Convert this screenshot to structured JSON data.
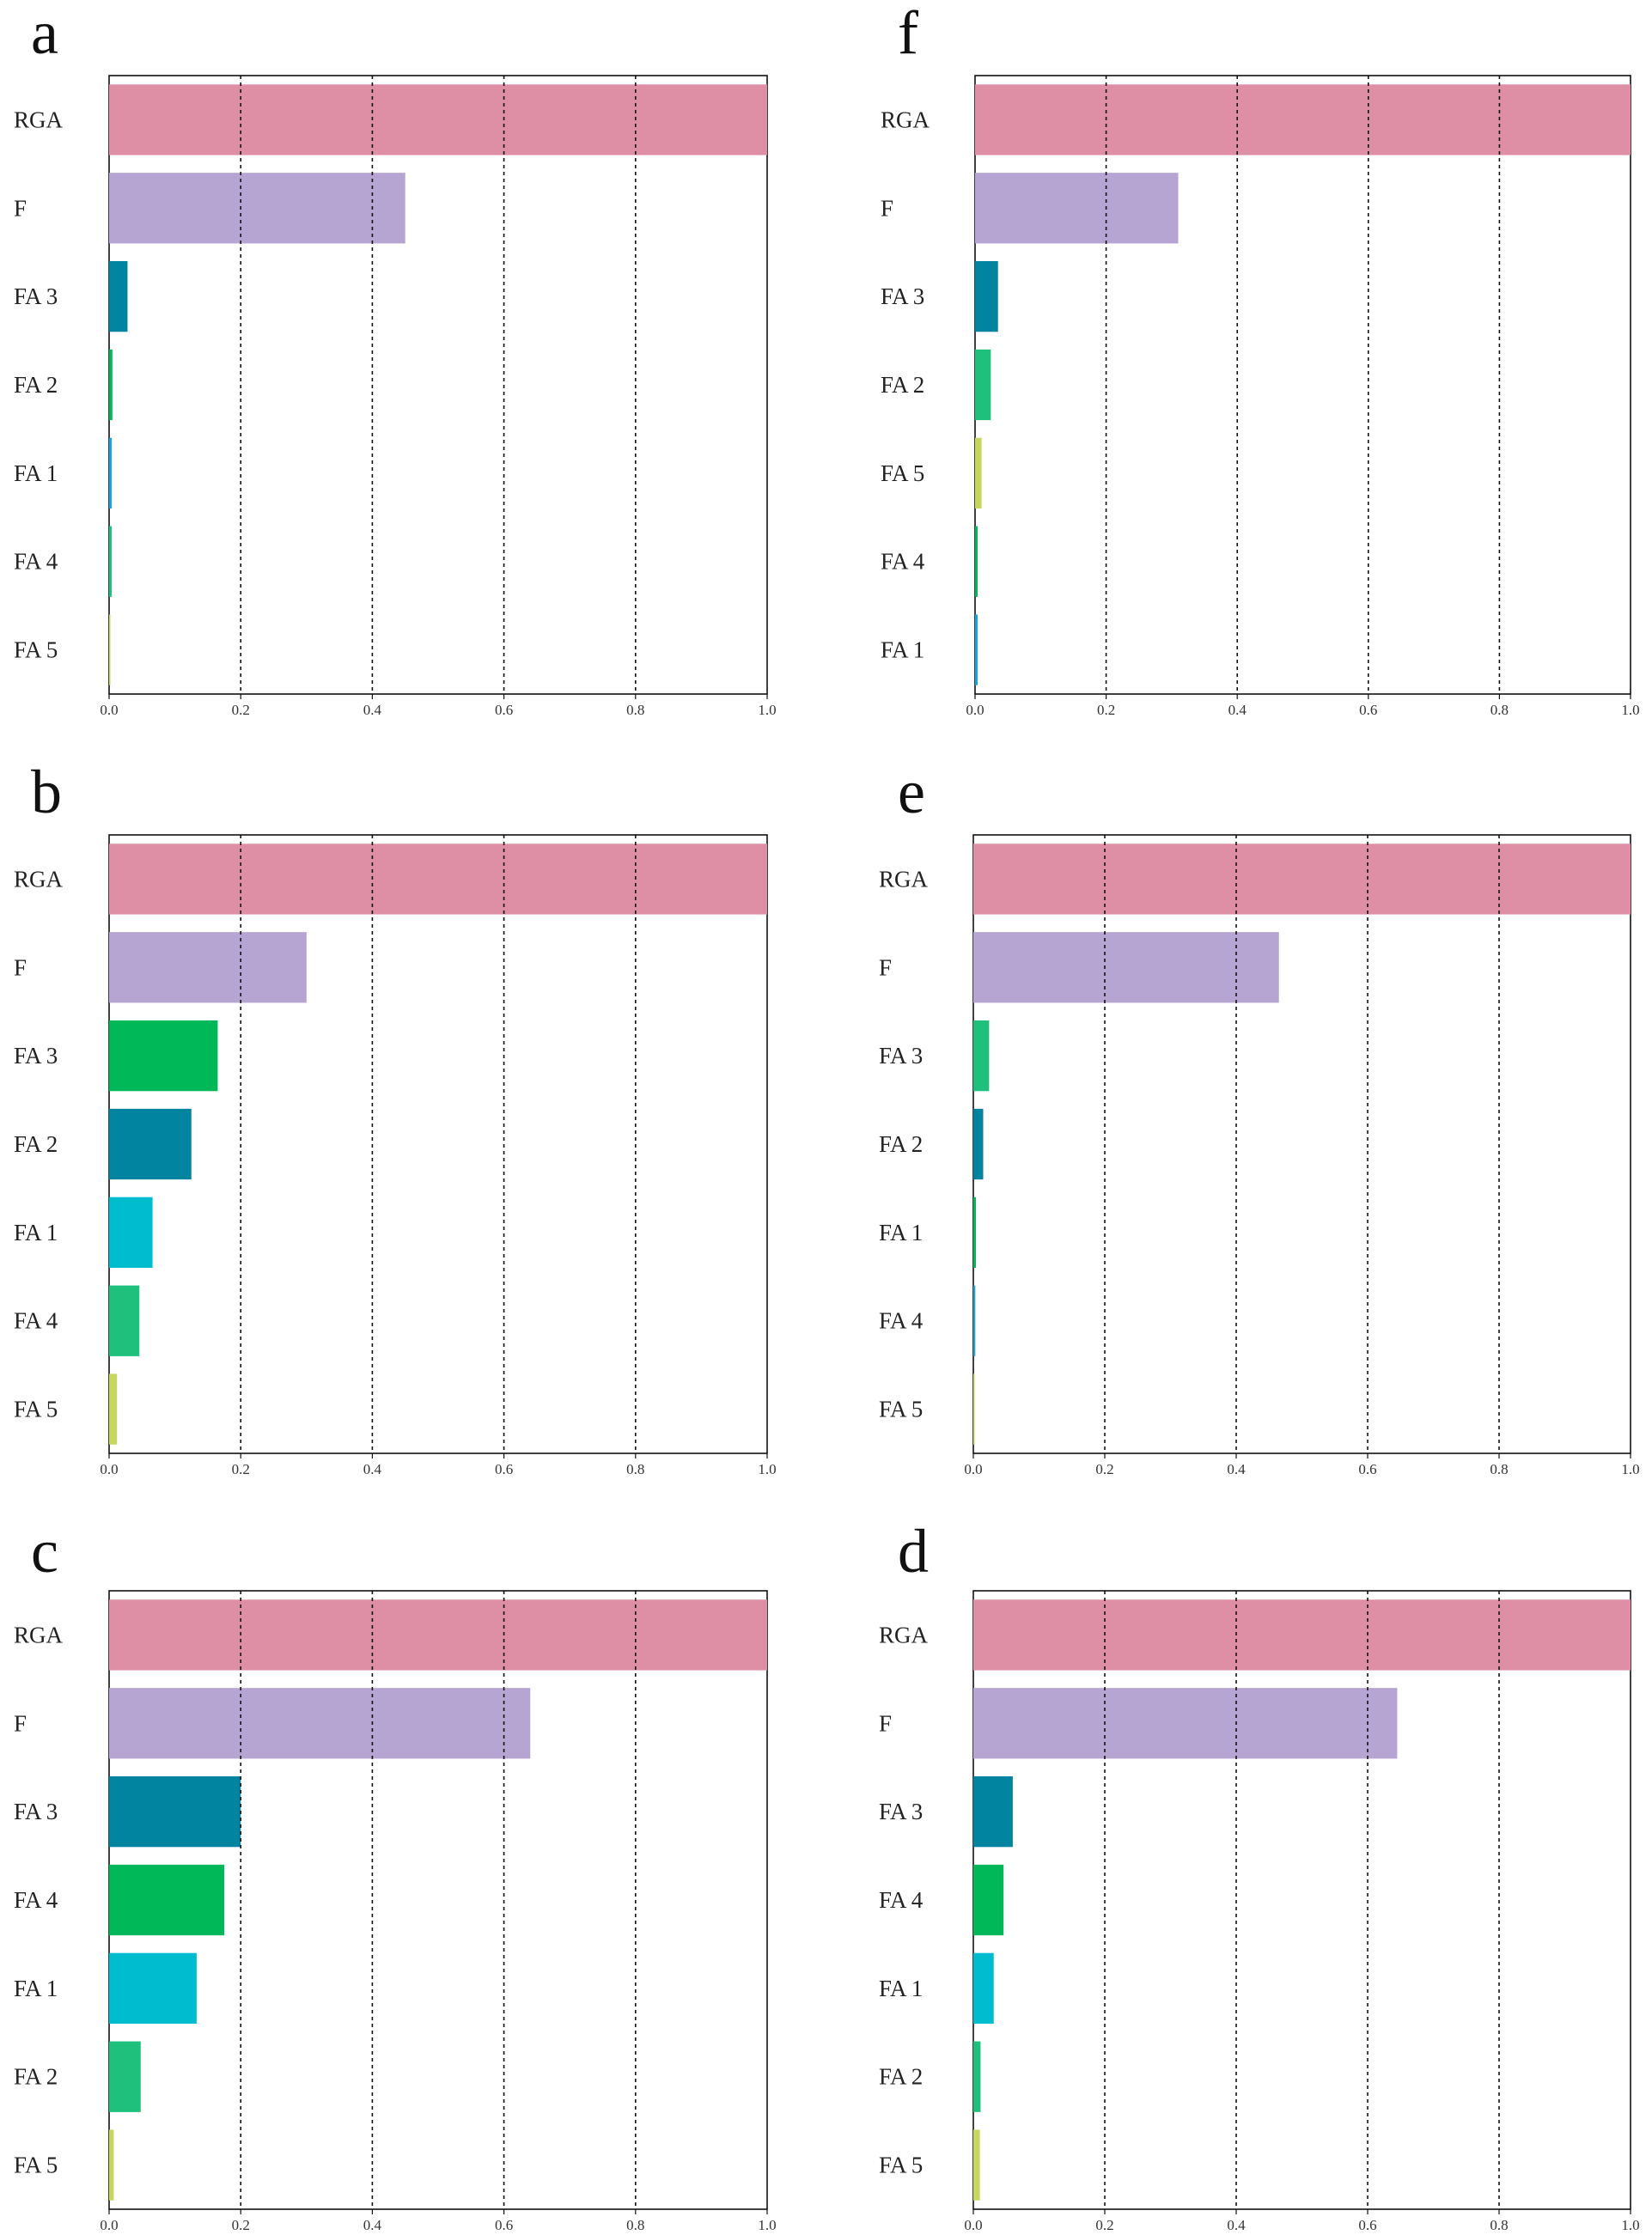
{
  "colors": {
    "RGA": "#de8fa5",
    "F": "#b6a5d3",
    "teal": "#00849f",
    "green": "#00b858",
    "cyan": "#00bccf",
    "seagreen": "#1fbf7c",
    "olive": "#c7d65e",
    "lightblue": "#19a3d9",
    "axis": "#111111",
    "grid": "#111111"
  },
  "chart_data": [
    {
      "panel": "a",
      "type": "bar",
      "orientation": "horizontal",
      "categories": [
        "RGA",
        "F",
        "FA 3",
        "FA 2",
        "FA 1",
        "FA 4",
        "FA 5"
      ],
      "values": [
        1.0,
        0.45,
        0.028,
        0.005,
        0.004,
        0.004,
        0.001
      ],
      "bar_colors": [
        "RGA",
        "F",
        "teal",
        "green",
        "lightblue",
        "seagreen",
        "olive"
      ],
      "ticks": [
        "0.0",
        "0.2",
        "0.4",
        "0.6",
        "0.8",
        "1.0"
      ],
      "xlim": [
        0,
        1
      ],
      "grid": true
    },
    {
      "panel": "f",
      "type": "bar",
      "orientation": "horizontal",
      "categories": [
        "RGA",
        "F",
        "FA 3",
        "FA 2",
        "FA 5",
        "FA 4",
        "FA 1"
      ],
      "values": [
        1.0,
        0.31,
        0.035,
        0.024,
        0.01,
        0.004,
        0.004
      ],
      "bar_colors": [
        "RGA",
        "F",
        "teal",
        "seagreen",
        "olive",
        "green",
        "lightblue"
      ],
      "ticks": [
        "0.0",
        "0.2",
        "0.4",
        "0.6",
        "0.8",
        "1.0"
      ],
      "xlim": [
        0,
        1
      ],
      "grid": true
    },
    {
      "panel": "b",
      "type": "bar",
      "orientation": "horizontal",
      "categories": [
        "RGA",
        "F",
        "FA 3",
        "FA 2",
        "FA 1",
        "FA 4",
        "FA 5"
      ],
      "values": [
        1.0,
        0.3,
        0.165,
        0.125,
        0.066,
        0.046,
        0.012
      ],
      "bar_colors": [
        "RGA",
        "F",
        "green",
        "teal",
        "cyan",
        "seagreen",
        "olive"
      ],
      "ticks": [
        "0.0",
        "0.2",
        "0.4",
        "0.6",
        "0.8",
        "1.0"
      ],
      "xlim": [
        0,
        1
      ],
      "grid": true
    },
    {
      "panel": "e",
      "type": "bar",
      "orientation": "horizontal",
      "categories": [
        "RGA",
        "F",
        "FA 3",
        "FA 2",
        "FA 1",
        "FA 4",
        "FA 5"
      ],
      "values": [
        1.0,
        0.465,
        0.024,
        0.015,
        0.004,
        0.003,
        0.001
      ],
      "bar_colors": [
        "RGA",
        "F",
        "seagreen",
        "teal",
        "green",
        "lightblue",
        "olive"
      ],
      "ticks": [
        "0.0",
        "0.2",
        "0.4",
        "0.6",
        "0.8",
        "1.0"
      ],
      "xlim": [
        0,
        1
      ],
      "grid": true
    },
    {
      "panel": "c",
      "type": "bar",
      "orientation": "horizontal",
      "categories": [
        "RGA",
        "F",
        "FA 3",
        "FA 4",
        "FA 1",
        "FA 2",
        "FA 5"
      ],
      "values": [
        1.0,
        0.64,
        0.2,
        0.175,
        0.133,
        0.048,
        0.007
      ],
      "bar_colors": [
        "RGA",
        "F",
        "teal",
        "green",
        "cyan",
        "seagreen",
        "olive"
      ],
      "ticks": [
        "0.0",
        "0.2",
        "0.4",
        "0.6",
        "0.8",
        "1.0"
      ],
      "xlim": [
        0,
        1
      ],
      "grid": true
    },
    {
      "panel": "d",
      "type": "bar",
      "orientation": "horizontal",
      "categories": [
        "RGA",
        "F",
        "FA 3",
        "FA 4",
        "FA 1",
        "FA 2",
        "FA 5"
      ],
      "values": [
        1.0,
        0.645,
        0.06,
        0.046,
        0.031,
        0.011,
        0.01
      ],
      "bar_colors": [
        "RGA",
        "F",
        "teal",
        "green",
        "cyan",
        "seagreen",
        "olive"
      ],
      "ticks": [
        "0.0",
        "0.2",
        "0.4",
        "0.6",
        "0.8",
        "1.0"
      ],
      "xlim": [
        0,
        1
      ],
      "grid": true
    }
  ]
}
